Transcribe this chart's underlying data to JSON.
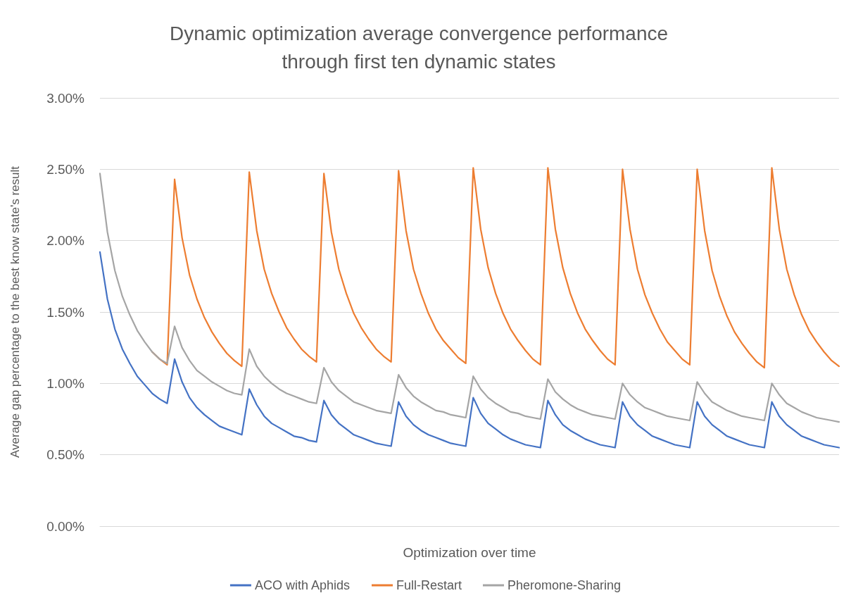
{
  "chart_data": {
    "type": "line",
    "title": "Dynamic optimization average convergence performance\nthrough first ten dynamic states",
    "xlabel": "Optimization over time",
    "ylabel": "Average gap percentage to the best know state's result",
    "categories": [
      null,
      null,
      null,
      null,
      null,
      null,
      null,
      null,
      null,
      null,
      null,
      null,
      null,
      null,
      null,
      null,
      null,
      null,
      null,
      null,
      null,
      null,
      null,
      null,
      null,
      null,
      null,
      null,
      null,
      null,
      null,
      null,
      null,
      null,
      null,
      null,
      null,
      null,
      null,
      null,
      null,
      null,
      null,
      null,
      null,
      null,
      null,
      null,
      null,
      null,
      null,
      null,
      null,
      null,
      null,
      null,
      null,
      null,
      null,
      null,
      null,
      null,
      null,
      null,
      null,
      null,
      null,
      null,
      null,
      null,
      null,
      null,
      null,
      null,
      null,
      null,
      null,
      null,
      null,
      null,
      null,
      null,
      null,
      null,
      null,
      null,
      null,
      null,
      null,
      null,
      null,
      null,
      null,
      null,
      null,
      null,
      null,
      null,
      null,
      null
    ],
    "series": [
      {
        "name": "ACO with Aphids",
        "color": "#4472c4",
        "values": [
          1.92,
          1.59,
          1.38,
          1.24,
          1.14,
          1.05,
          0.99,
          0.93,
          0.89,
          0.86,
          1.17,
          1.01,
          0.9,
          0.83,
          0.78,
          0.74,
          0.7,
          0.68,
          0.66,
          0.64,
          0.96,
          0.85,
          0.77,
          0.72,
          0.69,
          0.66,
          0.63,
          0.62,
          0.6,
          0.59,
          0.88,
          0.78,
          0.72,
          0.68,
          0.64,
          0.62,
          0.6,
          0.58,
          0.57,
          0.56,
          0.87,
          0.77,
          0.71,
          0.67,
          0.64,
          0.62,
          0.6,
          0.58,
          0.57,
          0.56,
          0.9,
          0.79,
          0.72,
          0.68,
          0.64,
          0.61,
          0.59,
          0.57,
          0.56,
          0.55,
          0.88,
          0.78,
          0.71,
          0.67,
          0.64,
          0.61,
          0.59,
          0.57,
          0.56,
          0.55,
          0.87,
          0.77,
          0.71,
          0.67,
          0.63,
          0.61,
          0.59,
          0.57,
          0.56,
          0.55,
          0.87,
          0.77,
          0.71,
          0.67,
          0.63,
          0.61,
          0.59,
          0.57,
          0.56,
          0.55,
          0.87,
          0.77,
          0.71,
          0.67,
          0.63,
          0.61,
          0.59,
          0.57,
          0.56,
          0.55
        ]
      },
      {
        "name": "Full-Restart",
        "color": "#ed7d31",
        "values": [
          null,
          null,
          null,
          null,
          null,
          null,
          null,
          1.22,
          1.17,
          1.13,
          2.43,
          2.02,
          1.76,
          1.59,
          1.46,
          1.36,
          1.28,
          1.21,
          1.16,
          1.12,
          2.48,
          2.07,
          1.8,
          1.63,
          1.5,
          1.39,
          1.31,
          1.24,
          1.19,
          1.15,
          2.47,
          2.06,
          1.8,
          1.63,
          1.49,
          1.39,
          1.31,
          1.24,
          1.19,
          1.15,
          2.49,
          2.07,
          1.8,
          1.63,
          1.49,
          1.38,
          1.3,
          1.24,
          1.18,
          1.14,
          2.51,
          2.08,
          1.81,
          1.63,
          1.49,
          1.38,
          1.3,
          1.23,
          1.17,
          1.13,
          2.51,
          2.08,
          1.81,
          1.63,
          1.49,
          1.38,
          1.3,
          1.23,
          1.17,
          1.13,
          2.5,
          2.08,
          1.8,
          1.62,
          1.49,
          1.38,
          1.29,
          1.23,
          1.17,
          1.13,
          2.5,
          2.07,
          1.79,
          1.61,
          1.47,
          1.36,
          1.28,
          1.21,
          1.15,
          1.11,
          2.51,
          2.08,
          1.8,
          1.62,
          1.48,
          1.37,
          1.29,
          1.22,
          1.16,
          1.12
        ]
      },
      {
        "name": "Pheromone-Sharing",
        "color": "#a5a5a5",
        "values": [
          2.47,
          2.06,
          1.79,
          1.61,
          1.48,
          1.37,
          1.29,
          1.22,
          1.17,
          1.14,
          1.4,
          1.25,
          1.16,
          1.09,
          1.05,
          1.01,
          0.98,
          0.95,
          0.93,
          0.92,
          1.24,
          1.12,
          1.05,
          1.0,
          0.96,
          0.93,
          0.91,
          0.89,
          0.87,
          0.86,
          1.11,
          1.01,
          0.95,
          0.91,
          0.87,
          0.85,
          0.83,
          0.81,
          0.8,
          0.79,
          1.06,
          0.97,
          0.91,
          0.87,
          0.84,
          0.81,
          0.8,
          0.78,
          0.77,
          0.76,
          1.05,
          0.96,
          0.9,
          0.86,
          0.83,
          0.8,
          0.79,
          0.77,
          0.76,
          0.75,
          1.03,
          0.94,
          0.89,
          0.85,
          0.82,
          0.8,
          0.78,
          0.77,
          0.76,
          0.75,
          1.0,
          0.92,
          0.87,
          0.83,
          0.81,
          0.79,
          0.77,
          0.76,
          0.75,
          0.74,
          1.01,
          0.93,
          0.87,
          0.84,
          0.81,
          0.79,
          0.77,
          0.76,
          0.75,
          0.74,
          1.0,
          0.92,
          0.86,
          0.83,
          0.8,
          0.78,
          0.76,
          0.75,
          0.74,
          0.73
        ]
      }
    ],
    "ylim": [
      0,
      3
    ],
    "yticks": [
      {
        "value": 0,
        "label": "0.00%"
      },
      {
        "value": 0.5,
        "label": "0.50%"
      },
      {
        "value": 1,
        "label": "1.00%"
      },
      {
        "value": 1.5,
        "label": "1.50%"
      },
      {
        "value": 2,
        "label": "2.00%"
      },
      {
        "value": 2.5,
        "label": "2.50%"
      },
      {
        "value": 3,
        "label": "3.00%"
      }
    ],
    "grid": "y",
    "legend": "bottom",
    "marker": "none",
    "line_style": "solid"
  }
}
